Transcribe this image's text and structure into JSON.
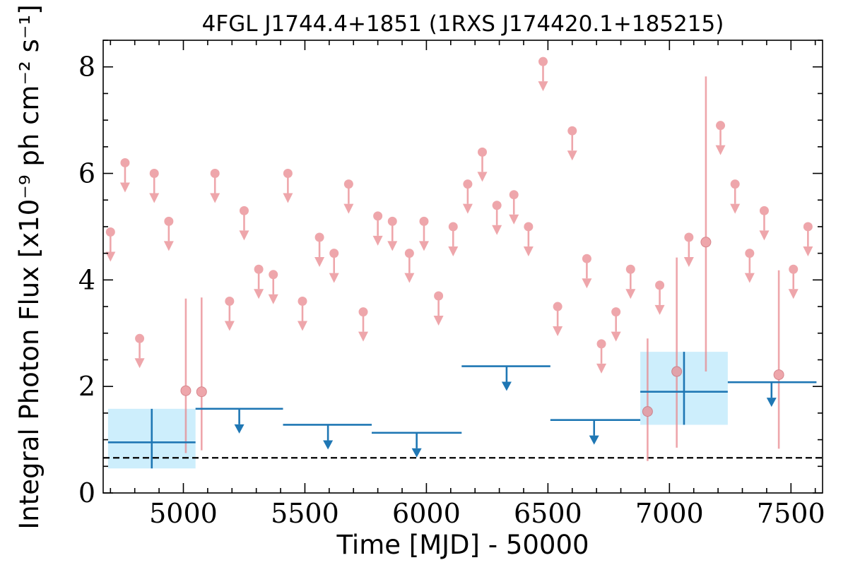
{
  "chart_data": {
    "type": "scatter",
    "title": "4FGL J1744.4+1851 (1RXS J174420.1+185215)",
    "xlabel": "Time [MJD] - 50000",
    "ylabel": "Integral Photon Flux [x10⁻⁹ ph cm⁻² s⁻¹]",
    "xlim": [
      4670,
      7630
    ],
    "ylim": [
      0,
      8.5
    ],
    "x_ticks": [
      5000,
      5500,
      6000,
      6500,
      7000,
      7500
    ],
    "x_tick_labels": [
      "5000",
      "5500",
      "6000",
      "6500",
      "7000",
      "7500"
    ],
    "y_ticks": [
      0,
      2,
      4,
      6,
      8
    ],
    "y_tick_labels": [
      "0",
      "2",
      "4",
      "6",
      "8"
    ],
    "grid": false,
    "legend": "none",
    "colors": {
      "monthly": "#e8858b",
      "yearly": "#1f77b4",
      "yearly_box": "#cdeefc",
      "reference_line": "#000000"
    },
    "reference_line": {
      "y": 0.66,
      "style": "dashed"
    },
    "series": [
      {
        "role": "monthly upper limits",
        "points": [
          {
            "x": 4700,
            "y": 4.9
          },
          {
            "x": 4760,
            "y": 6.2
          },
          {
            "x": 4820,
            "y": 2.9
          },
          {
            "x": 4880,
            "y": 6.0
          },
          {
            "x": 4940,
            "y": 5.1
          },
          {
            "x": 5190,
            "y": 3.6
          },
          {
            "x": 5130,
            "y": 6.0
          },
          {
            "x": 5250,
            "y": 5.3
          },
          {
            "x": 5310,
            "y": 4.2
          },
          {
            "x": 5370,
            "y": 4.1
          },
          {
            "x": 5430,
            "y": 6.0
          },
          {
            "x": 5490,
            "y": 3.6
          },
          {
            "x": 5560,
            "y": 4.8
          },
          {
            "x": 5620,
            "y": 4.5
          },
          {
            "x": 5680,
            "y": 5.8
          },
          {
            "x": 5740,
            "y": 3.4
          },
          {
            "x": 5800,
            "y": 5.2
          },
          {
            "x": 5860,
            "y": 5.1
          },
          {
            "x": 5930,
            "y": 4.5
          },
          {
            "x": 5990,
            "y": 5.1
          },
          {
            "x": 6050,
            "y": 3.7
          },
          {
            "x": 6110,
            "y": 5.0
          },
          {
            "x": 6170,
            "y": 5.8
          },
          {
            "x": 6230,
            "y": 6.4
          },
          {
            "x": 6290,
            "y": 5.4
          },
          {
            "x": 6360,
            "y": 5.6
          },
          {
            "x": 6420,
            "y": 5.0
          },
          {
            "x": 6480,
            "y": 8.1
          },
          {
            "x": 6540,
            "y": 3.5
          },
          {
            "x": 6600,
            "y": 6.8
          },
          {
            "x": 6660,
            "y": 4.4
          },
          {
            "x": 6720,
            "y": 2.8
          },
          {
            "x": 6780,
            "y": 3.4
          },
          {
            "x": 6840,
            "y": 4.2
          },
          {
            "x": 6960,
            "y": 3.9
          },
          {
            "x": 7080,
            "y": 4.8
          },
          {
            "x": 7210,
            "y": 6.9
          },
          {
            "x": 7270,
            "y": 5.8
          },
          {
            "x": 7330,
            "y": 4.5
          },
          {
            "x": 7390,
            "y": 5.3
          },
          {
            "x": 7510,
            "y": 4.2
          },
          {
            "x": 7570,
            "y": 5.0
          }
        ]
      },
      {
        "role": "monthly detections",
        "points": [
          {
            "x": 5010,
            "y": 1.92,
            "ylow": 0.75,
            "yhigh": 3.65
          },
          {
            "x": 5075,
            "y": 1.9,
            "ylow": 0.8,
            "yhigh": 3.67
          },
          {
            "x": 6910,
            "y": 1.53,
            "ylow": 0.6,
            "yhigh": 2.9
          },
          {
            "x": 7030,
            "y": 2.28,
            "ylow": 0.85,
            "yhigh": 4.42
          },
          {
            "x": 7150,
            "y": 4.71,
            "ylow": 2.28,
            "yhigh": 7.82
          },
          {
            "x": 7450,
            "y": 2.22,
            "ylow": 0.83,
            "yhigh": 4.18
          }
        ]
      },
      {
        "role": "yearly detections",
        "points": [
          {
            "x": 4870,
            "xmin": 4690,
            "xmax": 5050,
            "y": 0.95,
            "ylow": 0.46,
            "yhigh": 1.58
          },
          {
            "x": 7060,
            "xmin": 6880,
            "xmax": 7240,
            "y": 1.9,
            "ylow": 1.28,
            "yhigh": 2.65
          }
        ]
      },
      {
        "role": "yearly upper limits",
        "points": [
          {
            "x": 5230,
            "xmin": 5050,
            "xmax": 5410,
            "y": 1.58
          },
          {
            "x": 5595,
            "xmin": 5410,
            "xmax": 5775,
            "y": 1.28
          },
          {
            "x": 5960,
            "xmin": 5775,
            "xmax": 6145,
            "y": 1.13
          },
          {
            "x": 6330,
            "xmin": 6145,
            "xmax": 6510,
            "y": 2.38
          },
          {
            "x": 6690,
            "xmin": 6510,
            "xmax": 6880,
            "y": 1.37
          },
          {
            "x": 7420,
            "xmin": 7240,
            "xmax": 7605,
            "y": 2.08
          }
        ]
      }
    ]
  }
}
